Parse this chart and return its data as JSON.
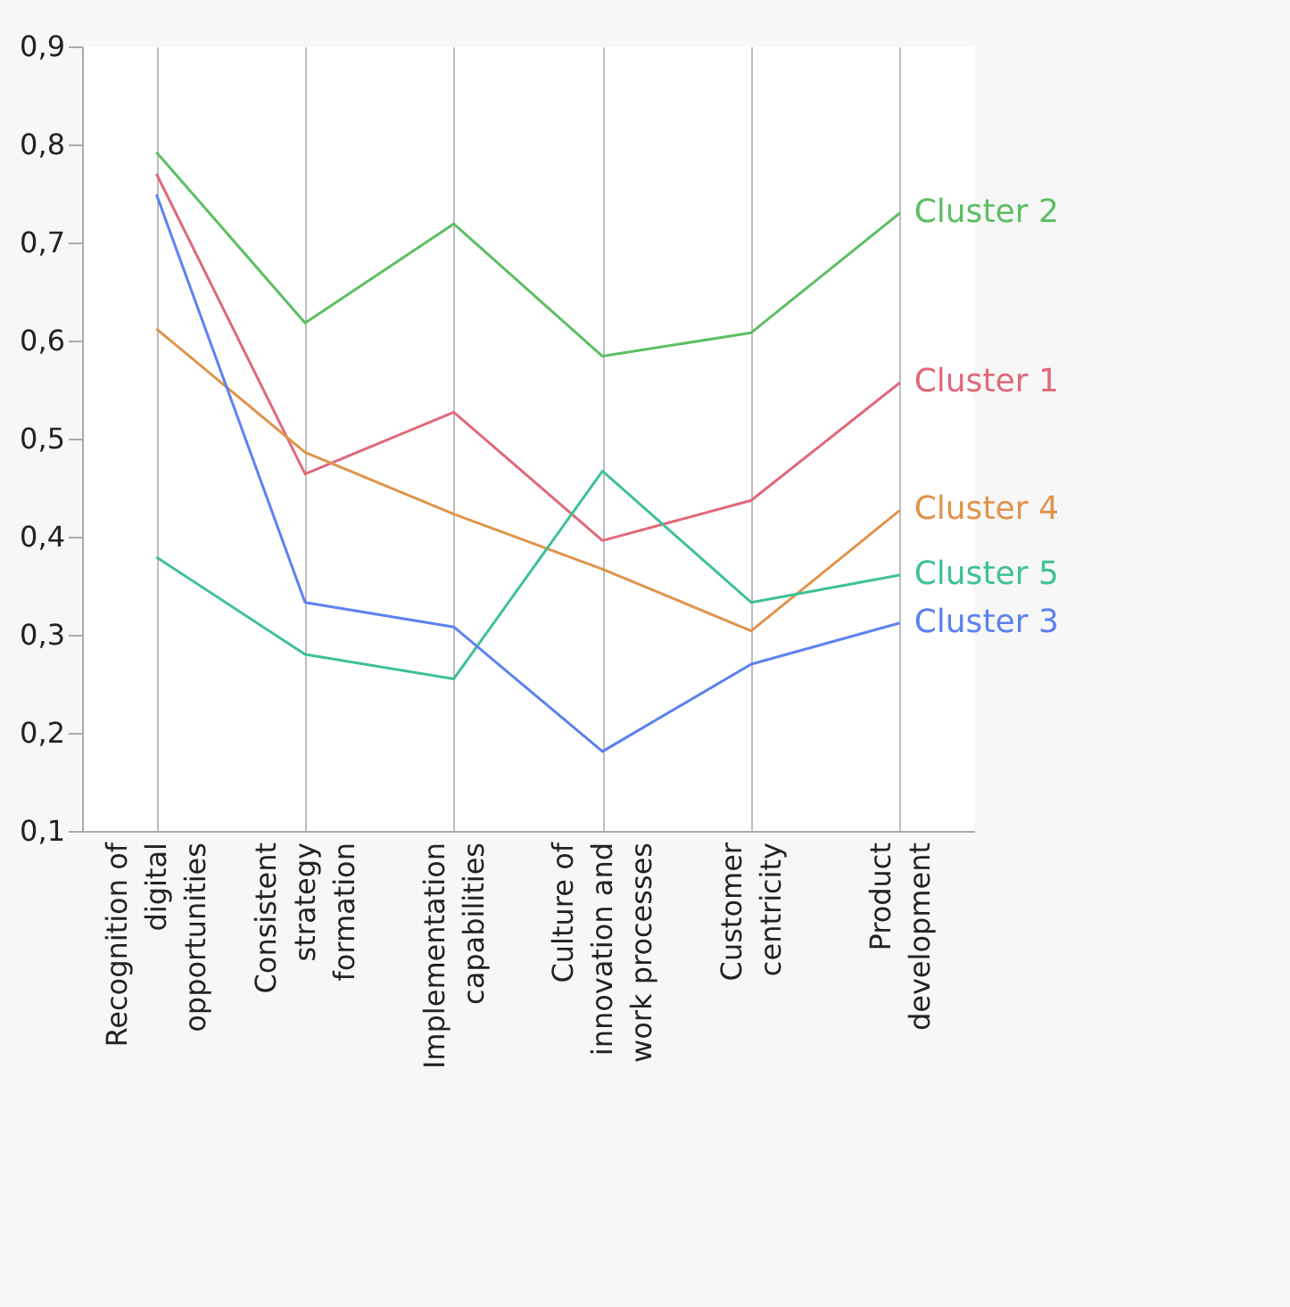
{
  "chart_data": {
    "type": "line",
    "categories": [
      "Recognition of digital opportunities",
      "Consistent strategy formation",
      "Implementation capabilities",
      "Culture of innovation and work processes",
      "Customer centricity",
      "Product development"
    ],
    "series": [
      {
        "name": "Cluster 2",
        "color": "#5cbf63",
        "values": [
          0.792,
          0.618,
          0.719,
          0.584,
          0.608,
          0.73
        ]
      },
      {
        "name": "Cluster 1",
        "color": "#e0687a",
        "values": [
          0.77,
          0.464,
          0.527,
          0.396,
          0.437,
          0.557
        ]
      },
      {
        "name": "Cluster 4",
        "color": "#e0934a",
        "values": [
          0.612,
          0.486,
          0.423,
          0.367,
          0.304,
          0.427
        ]
      },
      {
        "name": "Cluster 5",
        "color": "#3fc197",
        "values": [
          0.379,
          0.28,
          0.255,
          0.467,
          0.333,
          0.361
        ]
      },
      {
        "name": "Cluster 3",
        "color": "#5b82ef",
        "values": [
          0.749,
          0.333,
          0.308,
          0.181,
          0.27,
          0.312
        ]
      }
    ],
    "ylim": [
      0.1,
      0.9
    ],
    "yticks": [
      {
        "value": 0.1,
        "label": "0,1"
      },
      {
        "value": 0.2,
        "label": "0,2"
      },
      {
        "value": 0.3,
        "label": "0,3"
      },
      {
        "value": 0.4,
        "label": "0,4"
      },
      {
        "value": 0.5,
        "label": "0,5"
      },
      {
        "value": 0.6,
        "label": "0,6"
      },
      {
        "value": 0.7,
        "label": "0,7"
      },
      {
        "value": 0.8,
        "label": "0,8"
      },
      {
        "value": 0.9,
        "label": "0,9"
      }
    ],
    "grid": "x"
  }
}
